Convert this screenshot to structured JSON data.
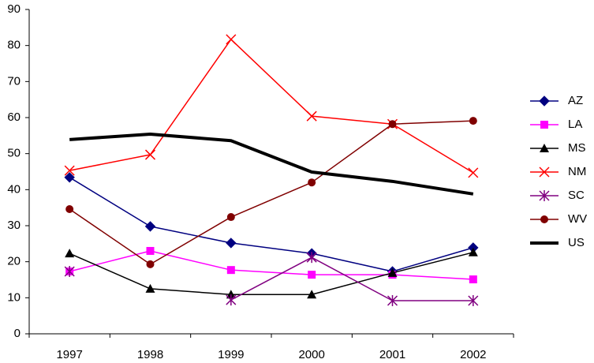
{
  "chart_data": {
    "type": "line",
    "categories": [
      "1997",
      "1998",
      "1999",
      "2000",
      "2001",
      "2002"
    ],
    "ylim": [
      0,
      90
    ],
    "yticks": [
      0,
      10,
      20,
      30,
      40,
      50,
      60,
      70,
      80,
      90
    ],
    "grid": false,
    "legend": "right",
    "series": [
      {
        "name": "AZ",
        "color": "#000080",
        "marker": "diamond",
        "values": [
          43.4,
          29.8,
          25.2,
          22.3,
          17.3,
          23.9
        ]
      },
      {
        "name": "LA",
        "color": "#ff00ff",
        "marker": "square",
        "values": [
          17.3,
          23.0,
          17.7,
          16.4,
          16.4,
          15.1
        ]
      },
      {
        "name": "MS",
        "color": "#000000",
        "marker": "triangle",
        "values": [
          22.3,
          12.5,
          10.9,
          10.9,
          16.9,
          22.6
        ]
      },
      {
        "name": "NM",
        "color": "#ff0000",
        "marker": "x",
        "values": [
          45.3,
          49.7,
          81.7,
          60.4,
          58.2,
          44.7
        ]
      },
      {
        "name": "SC",
        "color": "#800080",
        "marker": "asterisk",
        "values": [
          17.3,
          null,
          9.4,
          21.2,
          9.2,
          9.2
        ]
      },
      {
        "name": "WV",
        "color": "#800000",
        "marker": "circle",
        "values": [
          34.6,
          19.3,
          32.4,
          42.0,
          58.2,
          59.1
        ]
      },
      {
        "name": "US",
        "color": "#000000",
        "marker": "none",
        "width": 4,
        "values": [
          53.9,
          55.4,
          53.6,
          44.9,
          42.3,
          38.8
        ]
      }
    ]
  }
}
